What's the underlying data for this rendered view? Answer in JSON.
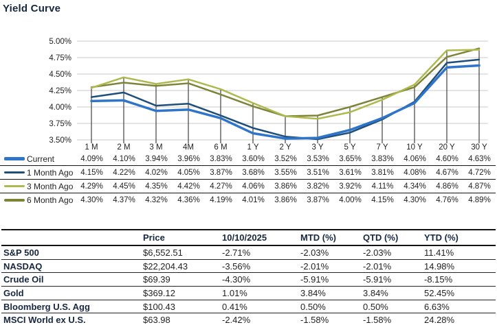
{
  "title": "Yield Curve",
  "colors": {
    "current": "#2E75C9",
    "one_month": "#1F4E79",
    "three_month": "#ADB94C",
    "six_month": "#7D8438",
    "grid": "#C9C9C9",
    "drop_line": "#1A1A1A",
    "axis_text": "#1F1F1F",
    "heading_text": "#16273F"
  },
  "chart_data": {
    "type": "line",
    "title": "Yield Curve",
    "categories": [
      "1 M",
      "2 M",
      "3 M",
      "4M",
      "6 M",
      "1 Y",
      "2 Y",
      "3 Y",
      "5 Y",
      "7 Y",
      "10 Y",
      "20 Y",
      "30 Y"
    ],
    "ylim": [
      3.5,
      5.0
    ],
    "ytick_step": 0.25,
    "grid": true,
    "legend_position": "bottom-table",
    "series": [
      {
        "name": "Current",
        "color_key": "current",
        "values": [
          4.09,
          4.1,
          3.94,
          3.96,
          3.83,
          3.6,
          3.52,
          3.53,
          3.65,
          3.83,
          4.06,
          4.6,
          4.63
        ]
      },
      {
        "name": "1 Month Ago",
        "color_key": "one_month",
        "values": [
          4.15,
          4.22,
          4.02,
          4.05,
          3.87,
          3.68,
          3.55,
          3.51,
          3.61,
          3.81,
          4.08,
          4.67,
          4.72
        ]
      },
      {
        "name": "3 Month Ago",
        "color_key": "three_month",
        "values": [
          4.29,
          4.45,
          4.35,
          4.42,
          4.27,
          4.06,
          3.86,
          3.82,
          3.92,
          4.11,
          4.34,
          4.86,
          4.87
        ]
      },
      {
        "name": "6 Month Ago",
        "color_key": "six_month",
        "values": [
          4.3,
          4.37,
          4.32,
          4.36,
          4.19,
          4.01,
          3.86,
          3.87,
          4.0,
          4.15,
          4.3,
          4.76,
          4.89
        ]
      }
    ]
  },
  "market_table": {
    "headers": [
      "",
      "Price",
      "10/10/2025",
      "MTD (%)",
      "QTD (%)",
      "YTD (%)"
    ],
    "rows": [
      {
        "label": "S&P 500",
        "price": "$6,552.51",
        "day": "-2.71%",
        "mtd": "-2.03%",
        "qtd": "-2.03%",
        "ytd": "11.41%"
      },
      {
        "label": "NASDAQ",
        "price": "$22,204.43",
        "day": "-3.56%",
        "mtd": "-2.01%",
        "qtd": "-2.01%",
        "ytd": "14.98%"
      },
      {
        "label": "Crude Oil",
        "price": "$69.39",
        "day": "-4.30%",
        "mtd": "-5.91%",
        "qtd": "-5.91%",
        "ytd": "-8.15%"
      },
      {
        "label": "Gold",
        "price": "$369.12",
        "day": "1.01%",
        "mtd": "3.84%",
        "qtd": "3.84%",
        "ytd": "52.45%"
      },
      {
        "label": "Bloomberg U.S. Agg",
        "price": "$100.43",
        "day": "0.41%",
        "mtd": "0.50%",
        "qtd": "0.50%",
        "ytd": "6.63%"
      },
      {
        "label": "MSCI World ex U.S.",
        "price": "$63.98",
        "day": "-2.42%",
        "mtd": "-1.58%",
        "qtd": "-1.58%",
        "ytd": "24.28%"
      }
    ]
  }
}
